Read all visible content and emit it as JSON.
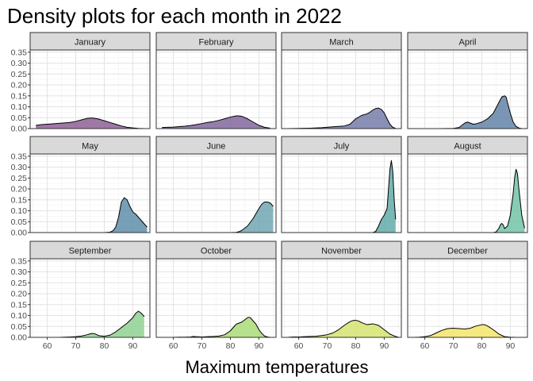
{
  "chart_data": {
    "type": "area",
    "subtype": "faceted-density",
    "title": "Density plots for each month in 2022",
    "xlabel": "Maximum temperatures",
    "ylabel": "",
    "xlim": [
      54,
      96
    ],
    "ylim": [
      0,
      0.36
    ],
    "x_ticks": [
      60,
      70,
      80,
      90
    ],
    "y_ticks": [
      "0.00",
      "0.05",
      "0.10",
      "0.15",
      "0.20",
      "0.25",
      "0.30",
      "0.35"
    ],
    "grid": true,
    "facet_layout": "3x4",
    "series": [
      {
        "name": "January",
        "color": "#8a5a92",
        "x": [
          56,
          58,
          60,
          62,
          64,
          66,
          68,
          70,
          72,
          74,
          75,
          76,
          78,
          80,
          82,
          84,
          86,
          88,
          90,
          92,
          94
        ],
        "y": [
          0.015,
          0.018,
          0.02,
          0.022,
          0.024,
          0.026,
          0.028,
          0.033,
          0.04,
          0.047,
          0.048,
          0.048,
          0.044,
          0.036,
          0.028,
          0.02,
          0.012,
          0.006,
          0.003,
          0.001,
          0.0
        ]
      },
      {
        "name": "February",
        "color": "#7e629a",
        "x": [
          56,
          58,
          60,
          62,
          64,
          66,
          68,
          70,
          72,
          74,
          76,
          78,
          80,
          82,
          83,
          84,
          86,
          88,
          90,
          92,
          94
        ],
        "y": [
          0.005,
          0.006,
          0.007,
          0.009,
          0.011,
          0.014,
          0.018,
          0.023,
          0.028,
          0.032,
          0.038,
          0.045,
          0.053,
          0.058,
          0.058,
          0.056,
          0.045,
          0.03,
          0.015,
          0.006,
          0.002
        ]
      },
      {
        "name": "March",
        "color": "#7078a6",
        "x": [
          56,
          60,
          64,
          68,
          72,
          74,
          76,
          78,
          80,
          82,
          84,
          85,
          86,
          87,
          88,
          89,
          90,
          91,
          92,
          93,
          94
        ],
        "y": [
          0.0,
          0.001,
          0.002,
          0.004,
          0.008,
          0.01,
          0.012,
          0.02,
          0.045,
          0.06,
          0.068,
          0.075,
          0.085,
          0.092,
          0.094,
          0.088,
          0.072,
          0.045,
          0.02,
          0.006,
          0.001
        ]
      },
      {
        "name": "April",
        "color": "#5e7fa5",
        "x": [
          56,
          60,
          65,
          70,
          72,
          73,
          74,
          75,
          76,
          77,
          78,
          80,
          82,
          84,
          86,
          87,
          88,
          88.5,
          89,
          90,
          91,
          92,
          93,
          94,
          95
        ],
        "y": [
          0.0,
          0.0,
          0.0,
          0.001,
          0.005,
          0.015,
          0.025,
          0.03,
          0.025,
          0.02,
          0.022,
          0.03,
          0.045,
          0.07,
          0.12,
          0.145,
          0.15,
          0.145,
          0.12,
          0.07,
          0.03,
          0.01,
          0.003,
          0.0,
          0.0
        ]
      },
      {
        "name": "May",
        "color": "#5a8aa8",
        "x": [
          56,
          60,
          70,
          80,
          82,
          83,
          84,
          85,
          86,
          87,
          88,
          89,
          90,
          91,
          92,
          93,
          94,
          95
        ],
        "y": [
          0.0,
          0.0,
          0.0,
          0.0,
          0.002,
          0.008,
          0.025,
          0.07,
          0.14,
          0.16,
          0.15,
          0.12,
          0.095,
          0.085,
          0.07,
          0.055,
          0.04,
          0.025
        ]
      },
      {
        "name": "June",
        "color": "#6aa3b0",
        "x": [
          56,
          70,
          80,
          82,
          83,
          84,
          86,
          88,
          90,
          91,
          92,
          93,
          94,
          95
        ],
        "y": [
          0.0,
          0.0,
          0.0,
          0.001,
          0.004,
          0.01,
          0.03,
          0.065,
          0.11,
          0.13,
          0.14,
          0.14,
          0.135,
          0.12
        ]
      },
      {
        "name": "July",
        "color": "#5ca8a6",
        "x": [
          56,
          70,
          80,
          86,
          87,
          88,
          89,
          90,
          91,
          91.5,
          92,
          92.5,
          93,
          93.5,
          94
        ],
        "y": [
          0.0,
          0.0,
          0.0,
          0.0,
          0.005,
          0.03,
          0.06,
          0.08,
          0.11,
          0.2,
          0.29,
          0.33,
          0.28,
          0.15,
          0.06
        ]
      },
      {
        "name": "August",
        "color": "#6cc2a2",
        "x": [
          56,
          70,
          80,
          84,
          85,
          86,
          86.5,
          87,
          87.5,
          88,
          89,
          90,
          90.5,
          91,
          91.5,
          92,
          92.5,
          93,
          94,
          95
        ],
        "y": [
          0.0,
          0.0,
          0.0,
          0.0,
          0.003,
          0.02,
          0.035,
          0.042,
          0.035,
          0.018,
          0.03,
          0.08,
          0.13,
          0.18,
          0.25,
          0.29,
          0.27,
          0.2,
          0.08,
          0.02
        ]
      },
      {
        "name": "September",
        "color": "#8bcf8e",
        "x": [
          56,
          60,
          64,
          66,
          68,
          70,
          72,
          74,
          75,
          76,
          77,
          78,
          80,
          82,
          84,
          86,
          88,
          90,
          91,
          92,
          93,
          94
        ],
        "y": [
          0.0,
          0.0,
          0.0,
          0.001,
          0.002,
          0.003,
          0.006,
          0.012,
          0.016,
          0.018,
          0.015,
          0.008,
          0.005,
          0.01,
          0.025,
          0.045,
          0.065,
          0.09,
          0.11,
          0.12,
          0.11,
          0.095
        ]
      },
      {
        "name": "October",
        "color": "#a7da74",
        "x": [
          56,
          60,
          62,
          64,
          66,
          67,
          68,
          70,
          72,
          74,
          76,
          78,
          80,
          81,
          82,
          84,
          85,
          86,
          86.5,
          87,
          88,
          89,
          90,
          91,
          92,
          93,
          94
        ],
        "y": [
          0.0,
          0.0,
          0.001,
          0.001,
          0.002,
          0.004,
          0.003,
          0.002,
          0.003,
          0.004,
          0.006,
          0.012,
          0.03,
          0.045,
          0.06,
          0.07,
          0.08,
          0.09,
          0.092,
          0.09,
          0.075,
          0.06,
          0.035,
          0.018,
          0.006,
          0.002,
          0.0
        ]
      },
      {
        "name": "November",
        "color": "#d4e26a",
        "x": [
          56,
          58,
          60,
          62,
          64,
          66,
          68,
          70,
          72,
          74,
          76,
          78,
          79,
          80,
          81,
          82,
          84,
          86,
          88,
          90,
          92,
          94,
          95
        ],
        "y": [
          0.0,
          0.002,
          0.002,
          0.003,
          0.004,
          0.005,
          0.008,
          0.012,
          0.02,
          0.035,
          0.055,
          0.072,
          0.077,
          0.078,
          0.075,
          0.068,
          0.058,
          0.062,
          0.055,
          0.035,
          0.015,
          0.004,
          0.0
        ]
      },
      {
        "name": "December",
        "color": "#f3e463",
        "x": [
          56,
          58,
          60,
          62,
          64,
          66,
          68,
          70,
          72,
          74,
          76,
          78,
          80,
          81,
          82,
          84,
          86,
          88,
          90,
          92,
          94
        ],
        "y": [
          0.0,
          0.001,
          0.003,
          0.008,
          0.02,
          0.032,
          0.04,
          0.042,
          0.04,
          0.038,
          0.042,
          0.052,
          0.058,
          0.058,
          0.052,
          0.035,
          0.015,
          0.003,
          0.001,
          0.0,
          0.0
        ]
      }
    ]
  }
}
